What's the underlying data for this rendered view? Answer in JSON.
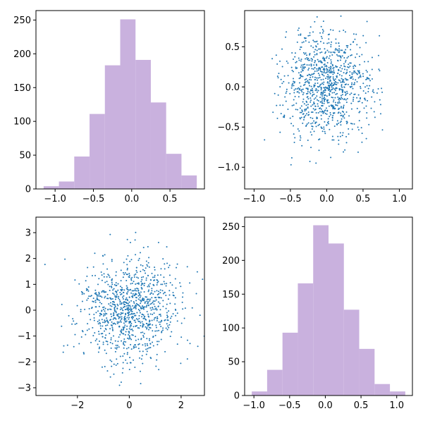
{
  "colors": {
    "histogram": "#c9b1de",
    "scatter": "#1f77b4",
    "background": "#ffffff",
    "axes": "#000000"
  },
  "chart_data": [
    {
      "type": "bar",
      "subplot": "top-left",
      "title": "",
      "xlabel": "",
      "ylabel": "",
      "bin_edges": [
        -1.15,
        -0.95,
        -0.75,
        -0.55,
        -0.35,
        -0.15,
        0.05,
        0.25,
        0.45,
        0.65,
        0.85
      ],
      "values": [
        4,
        11,
        48,
        111,
        183,
        251,
        191,
        128,
        52,
        20
      ],
      "xlim": [
        -1.25,
        0.95
      ],
      "ylim": [
        0,
        264
      ],
      "xticks": [
        -1.0,
        -0.5,
        0.0,
        0.5
      ],
      "xtick_labels": [
        "−1.0",
        "−0.5",
        "0.0",
        "0.5"
      ],
      "yticks": [
        0,
        50,
        100,
        150,
        200,
        250
      ],
      "ytick_labels": [
        "0",
        "50",
        "100",
        "150",
        "200",
        "250"
      ],
      "grid": false,
      "legend": "none"
    },
    {
      "type": "scatter",
      "subplot": "top-right",
      "title": "",
      "xlabel": "",
      "ylabel": "",
      "n_points": 1000,
      "x_distribution": {
        "mean": 0.0,
        "std": 0.3
      },
      "y_distribution": {
        "mean": 0.0,
        "std": 0.33
      },
      "xlim": [
        -1.13,
        1.18
      ],
      "ylim": [
        -1.27,
        0.95
      ],
      "xticks": [
        -1.0,
        -0.5,
        0.0,
        0.5,
        1.0
      ],
      "xtick_labels": [
        "−1.0",
        "−0.5",
        "0.0",
        "0.5",
        "1.0"
      ],
      "yticks": [
        -1.0,
        -0.5,
        0.0,
        0.5
      ],
      "ytick_labels": [
        "−1.0",
        "−0.5",
        "0.0",
        "0.5"
      ],
      "grid": false,
      "legend": "none"
    },
    {
      "type": "scatter",
      "subplot": "bottom-left",
      "title": "",
      "xlabel": "",
      "ylabel": "",
      "n_points": 1000,
      "x_distribution": {
        "mean": 0.0,
        "std": 1.0
      },
      "y_distribution": {
        "mean": 0.0,
        "std": 1.0
      },
      "xlim": [
        -3.6,
        2.9
      ],
      "ylim": [
        -3.3,
        3.6
      ],
      "xticks": [
        -2,
        0,
        2
      ],
      "xtick_labels": [
        "−2",
        "0",
        "2"
      ],
      "yticks": [
        -3,
        -2,
        -1,
        0,
        1,
        2,
        3
      ],
      "ytick_labels": [
        "−3",
        "−2",
        "−1",
        "0",
        "1",
        "2",
        "3"
      ],
      "grid": false,
      "legend": "none"
    },
    {
      "type": "bar",
      "subplot": "bottom-right",
      "title": "",
      "xlabel": "",
      "ylabel": "",
      "bin_edges": [
        -1.03,
        -0.815,
        -0.6,
        -0.385,
        -0.17,
        0.045,
        0.26,
        0.475,
        0.69,
        0.905,
        1.12
      ],
      "values": [
        6,
        38,
        93,
        166,
        252,
        225,
        127,
        69,
        17,
        6
      ],
      "xlim": [
        -1.13,
        1.22
      ],
      "ylim": [
        0,
        264
      ],
      "xticks": [
        -1.0,
        -0.5,
        0.0,
        0.5,
        1.0
      ],
      "xtick_labels": [
        "−1.0",
        "−0.5",
        "0.0",
        "0.5",
        "1.0"
      ],
      "yticks": [
        0,
        50,
        100,
        150,
        200,
        250
      ],
      "ytick_labels": [
        "0",
        "50",
        "100",
        "150",
        "200",
        "250"
      ],
      "grid": false,
      "legend": "none"
    }
  ]
}
